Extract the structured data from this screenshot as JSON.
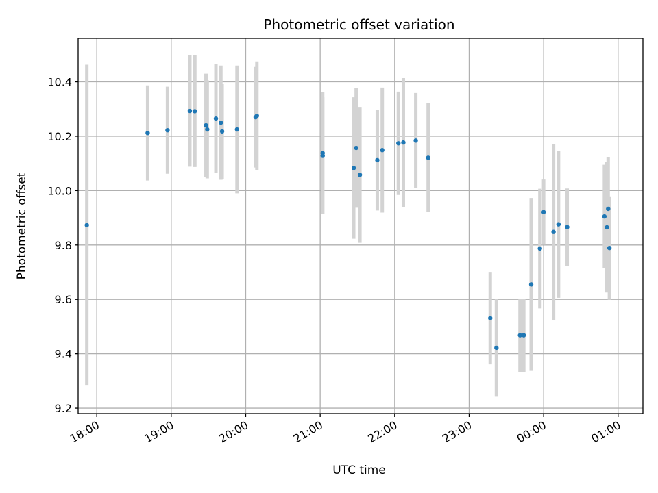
{
  "chart_data": {
    "type": "scatter",
    "title": "Photometric offset variation",
    "xlabel": "UTC time",
    "ylabel": "Photometric offset",
    "xlim": [
      "2024-01-01T17:45",
      "2024-01-02T01:20"
    ],
    "ylim": [
      9.18,
      10.56
    ],
    "x_ticks": [
      {
        "time": "2024-01-01T18:00",
        "label": "18:00"
      },
      {
        "time": "2024-01-01T19:00",
        "label": "19:00"
      },
      {
        "time": "2024-01-01T20:00",
        "label": "20:00"
      },
      {
        "time": "2024-01-01T21:00",
        "label": "21:00"
      },
      {
        "time": "2024-01-01T22:00",
        "label": "22:00"
      },
      {
        "time": "2024-01-01T23:00",
        "label": "23:00"
      },
      {
        "time": "2024-01-02T00:00",
        "label": "00:00"
      },
      {
        "time": "2024-01-02T01:00",
        "label": "01:00"
      }
    ],
    "y_ticks": [
      {
        "value": 9.2,
        "label": "9.2"
      },
      {
        "value": 9.4,
        "label": "9.4"
      },
      {
        "value": 9.6,
        "label": "9.6"
      },
      {
        "value": 9.8,
        "label": "9.8"
      },
      {
        "value": 10.0,
        "label": "10.0"
      },
      {
        "value": 10.2,
        "label": "10.2"
      },
      {
        "value": 10.4,
        "label": "10.4"
      }
    ],
    "grid": true,
    "colors": {
      "marker": "#1f77b4",
      "errorbar": "#d3d3d3"
    },
    "points": [
      {
        "time": "2024-01-01T17:52",
        "y": 9.873,
        "err": 0.59
      },
      {
        "time": "2024-01-01T18:41",
        "y": 10.212,
        "err": 0.175
      },
      {
        "time": "2024-01-01T18:57",
        "y": 10.222,
        "err": 0.16
      },
      {
        "time": "2024-01-01T19:15",
        "y": 10.293,
        "err": 0.205
      },
      {
        "time": "2024-01-01T19:19",
        "y": 10.292,
        "err": 0.205
      },
      {
        "time": "2024-01-01T19:28",
        "y": 10.24,
        "err": 0.19
      },
      {
        "time": "2024-01-01T19:29",
        "y": 10.225,
        "err": 0.18
      },
      {
        "time": "2024-01-01T19:36",
        "y": 10.265,
        "err": 0.2
      },
      {
        "time": "2024-01-01T19:40",
        "y": 10.25,
        "err": 0.21
      },
      {
        "time": "2024-01-01T19:41",
        "y": 10.218,
        "err": 0.175
      },
      {
        "time": "2024-01-01T19:53",
        "y": 10.225,
        "err": 0.235
      },
      {
        "time": "2024-01-01T20:08",
        "y": 10.27,
        "err": 0.185
      },
      {
        "time": "2024-01-01T20:09",
        "y": 10.275,
        "err": 0.2
      },
      {
        "time": "2024-01-01T21:02",
        "y": 10.138,
        "err": 0.225
      },
      {
        "time": "2024-01-01T21:02",
        "y": 10.128,
        "err": 0.215
      },
      {
        "time": "2024-01-01T21:27",
        "y": 10.083,
        "err": 0.26
      },
      {
        "time": "2024-01-01T21:29",
        "y": 10.157,
        "err": 0.22
      },
      {
        "time": "2024-01-01T21:32",
        "y": 10.058,
        "err": 0.25
      },
      {
        "time": "2024-01-01T21:46",
        "y": 10.112,
        "err": 0.185
      },
      {
        "time": "2024-01-01T21:50",
        "y": 10.149,
        "err": 0.23
      },
      {
        "time": "2024-01-01T22:03",
        "y": 10.174,
        "err": 0.19
      },
      {
        "time": "2024-01-01T22:07",
        "y": 10.177,
        "err": 0.237
      },
      {
        "time": "2024-01-01T22:17",
        "y": 10.184,
        "err": 0.175
      },
      {
        "time": "2024-01-01T22:27",
        "y": 10.121,
        "err": 0.2
      },
      {
        "time": "2024-01-01T23:17",
        "y": 9.531,
        "err": 0.17
      },
      {
        "time": "2024-01-01T23:22",
        "y": 9.422,
        "err": 0.18
      },
      {
        "time": "2024-01-01T23:41",
        "y": 9.468,
        "err": 0.135
      },
      {
        "time": "2024-01-01T23:44",
        "y": 9.468,
        "err": 0.135
      },
      {
        "time": "2024-01-01T23:50",
        "y": 9.655,
        "err": 0.318
      },
      {
        "time": "2024-01-01T23:57",
        "y": 9.787,
        "err": 0.22
      },
      {
        "time": "2024-01-02T00:00",
        "y": 9.921,
        "err": 0.12
      },
      {
        "time": "2024-01-02T00:08",
        "y": 9.848,
        "err": 0.324
      },
      {
        "time": "2024-01-02T00:12",
        "y": 9.876,
        "err": 0.27
      },
      {
        "time": "2024-01-02T00:19",
        "y": 9.866,
        "err": 0.142
      },
      {
        "time": "2024-01-02T00:49",
        "y": 9.905,
        "err": 0.19
      },
      {
        "time": "2024-01-02T00:51",
        "y": 9.865,
        "err": 0.24
      },
      {
        "time": "2024-01-02T00:52",
        "y": 9.933,
        "err": 0.19
      },
      {
        "time": "2024-01-02T00:53",
        "y": 9.789,
        "err": 0.19
      }
    ]
  }
}
